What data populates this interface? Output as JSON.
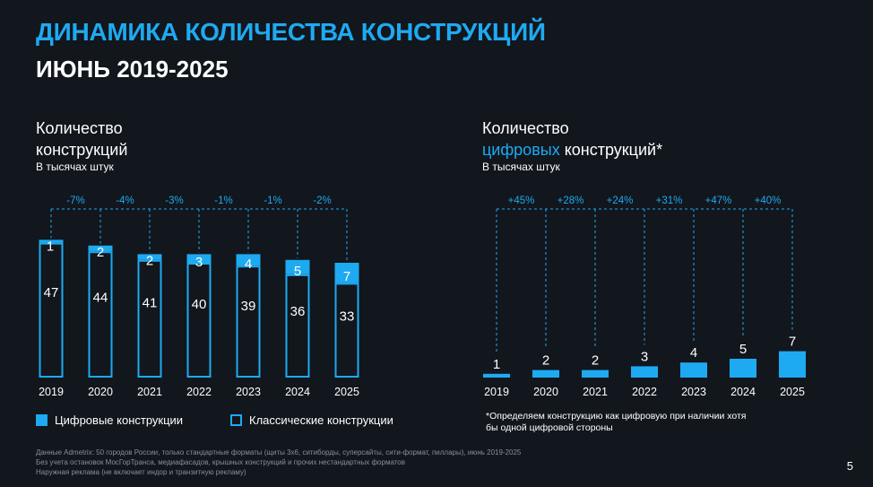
{
  "title": "ДИНАМИКА КОЛИЧЕСТВА КОНСТРУКЦИЙ",
  "subtitle": "ИЮНЬ 2019-2025",
  "left_chart": {
    "title_line1": "Количество",
    "title_line2": "конструкций",
    "unit": "В тысячах штук"
  },
  "right_chart": {
    "title_line1": "Количество",
    "title_accent": "цифровых",
    "title_rest": " конструкций*",
    "unit": "В тысячах штук"
  },
  "legend": {
    "digital": "Цифровые конструкции",
    "classic": "Классические конструкции"
  },
  "note": "*Определяем конструкцию как цифровую при наличии хотя бы одной цифровой стороны",
  "sources": [
    "Данные Admetrix: 50 городов России, только стандартные форматы (щиты 3х6, ситиборды, суперсайты, сити-формат, пиллары), июнь 2019-2025",
    "Без учета остановок МосГорТранса, медиафасадов, крышных конструкций и прочих нестандартных форматов",
    "Наружная реклама (не включает индор и транзитную рекламу)"
  ],
  "page_number": "5",
  "colors": {
    "accent": "#1eaaf1",
    "background": "#12161d"
  },
  "chart_data": [
    {
      "type": "bar",
      "stacked": true,
      "categories": [
        "2019",
        "2020",
        "2021",
        "2022",
        "2023",
        "2024",
        "2025"
      ],
      "series": [
        {
          "name": "Классические конструкции",
          "values": [
            47,
            44,
            41,
            40,
            39,
            36,
            33
          ]
        },
        {
          "name": "Цифровые конструкции",
          "values": [
            1,
            2,
            2,
            3,
            4,
            5,
            7
          ]
        }
      ],
      "changes": [
        "-7%",
        "-4%",
        "-3%",
        "-1%",
        "-1%",
        "-2%"
      ]
    },
    {
      "type": "bar",
      "categories": [
        "2019",
        "2020",
        "2021",
        "2022",
        "2023",
        "2024",
        "2025"
      ],
      "values": [
        1,
        2,
        2,
        3,
        4,
        5,
        7
      ],
      "changes": [
        "+45%",
        "+28%",
        "+24%",
        "+31%",
        "+47%",
        "+40%"
      ]
    }
  ]
}
